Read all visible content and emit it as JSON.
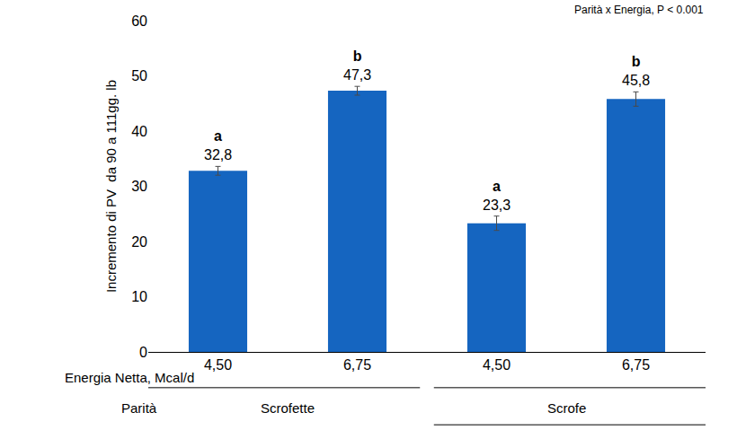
{
  "chart_data": {
    "type": "bar",
    "y_label": "Incremento di PV  da 90 a 111gg. lb",
    "x_label": "Energia Netta, Mcal/d",
    "group_axis_label": "Parità",
    "categories": [
      "4,50",
      "6,75",
      "4,50",
      "6,75"
    ],
    "group_labels": [
      "Scrofette",
      "Scrofette",
      "Scrofe",
      "Scrofe"
    ],
    "values": [
      32.8,
      47.3,
      23.3,
      45.8
    ],
    "value_labels": [
      "32,8",
      "47,3",
      "23,3",
      "45,8"
    ],
    "errors": [
      0.8,
      0.8,
      1.3,
      1.3
    ],
    "significance": [
      "a",
      "b",
      "a",
      "b"
    ],
    "annotation": "Parità x Energia, P < 0.001",
    "color": "#1565c0",
    "ylim": [
      0,
      60
    ],
    "yticks": [
      0,
      10,
      20,
      30,
      40,
      50,
      60
    ],
    "grid": false,
    "data_labels": true
  }
}
